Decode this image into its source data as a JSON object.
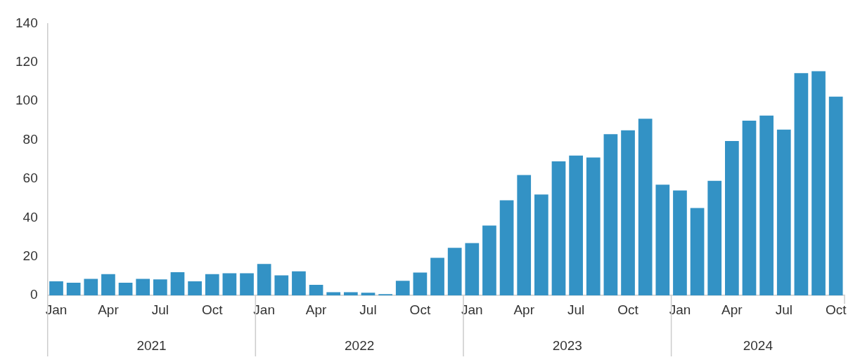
{
  "chart_data": {
    "type": "bar",
    "categories": [
      "Jan",
      null,
      null,
      "Apr",
      null,
      null,
      "Jul",
      null,
      null,
      "Oct",
      null,
      null,
      "Jan",
      null,
      null,
      "Apr",
      null,
      null,
      "Jul",
      null,
      null,
      "Oct",
      null,
      null,
      "Jan",
      null,
      null,
      "Apr",
      null,
      null,
      "Jul",
      null,
      null,
      "Oct",
      null,
      null,
      "Jan",
      null,
      null,
      "Apr",
      null,
      null,
      "Jul",
      null,
      null,
      "Oct"
    ],
    "values": [
      7.3,
      6.6,
      8.6,
      11,
      6.6,
      8.6,
      8.3,
      12,
      7.3,
      11,
      11.4,
      11.4,
      16.2,
      10.4,
      12.4,
      5.5,
      1.7,
      1.7,
      1.4,
      0.7,
      7.6,
      11.8,
      19.4,
      24.5,
      27,
      36,
      49,
      62,
      52,
      69,
      72,
      71,
      83,
      85,
      91,
      57,
      54,
      45,
      59,
      79.5,
      90,
      92.6,
      85.4,
      114.4,
      115.4,
      102.3
    ],
    "color": "#3392c5",
    "ylim": [
      0,
      140
    ],
    "yticks": [
      0,
      20,
      40,
      60,
      80,
      100,
      120,
      140
    ],
    "grid": false,
    "legend": false,
    "annotations": [
      "2021",
      "2022",
      "2023",
      "2024"
    ]
  }
}
